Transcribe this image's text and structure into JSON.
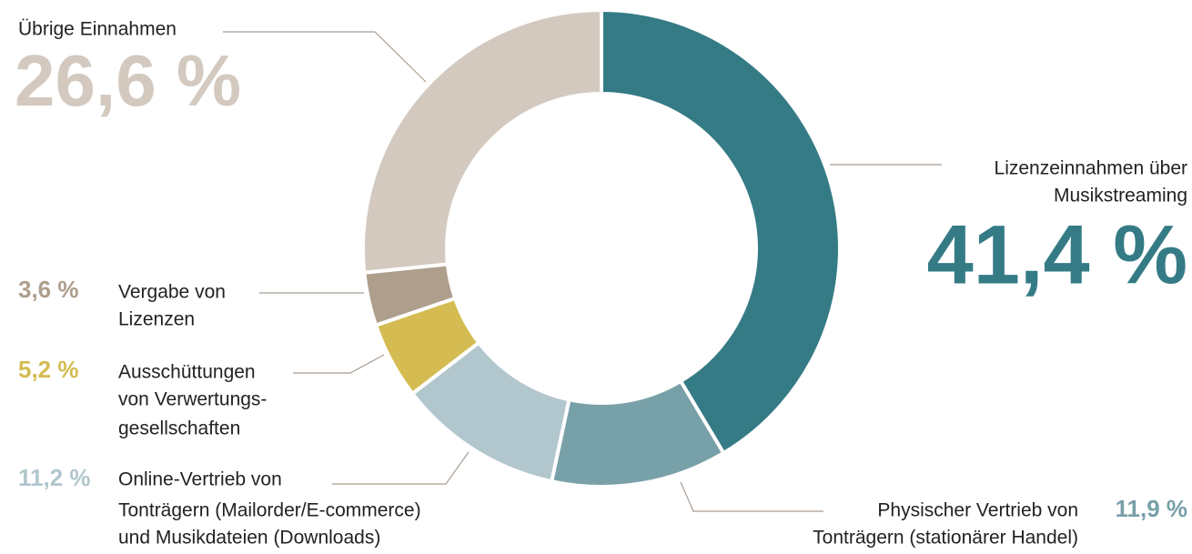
{
  "chart_data": {
    "type": "donut",
    "categories": [
      [
        "Lizenzeinnahmen über",
        "Musikstreaming"
      ],
      [
        "Physischer Vertrieb von",
        "Tonträgern (stationärer Handel)"
      ],
      [
        "Online-Vertrieb von",
        "Tonträgern (Mailorder/E-commerce)",
        "und Musikdateien (Downloads)"
      ],
      [
        "Ausschüttungen",
        "von Verwertungs-",
        "gesellschaften"
      ],
      [
        "Vergabe von",
        "Lizenzen"
      ],
      [
        "Übrige Einnahmen"
      ]
    ],
    "values": [
      41.4,
      11.9,
      11.2,
      5.2,
      3.6,
      26.6
    ],
    "value_labels": [
      "41,4 %",
      "11,9 %",
      "11,2 %",
      "5,2 %",
      "3,6 %",
      "26,6 %"
    ],
    "colors": [
      "#357b86",
      "#78a0a8",
      "#b2c6cd",
      "#d4bc52",
      "#ae9e8c",
      "#d3c9bf"
    ]
  }
}
